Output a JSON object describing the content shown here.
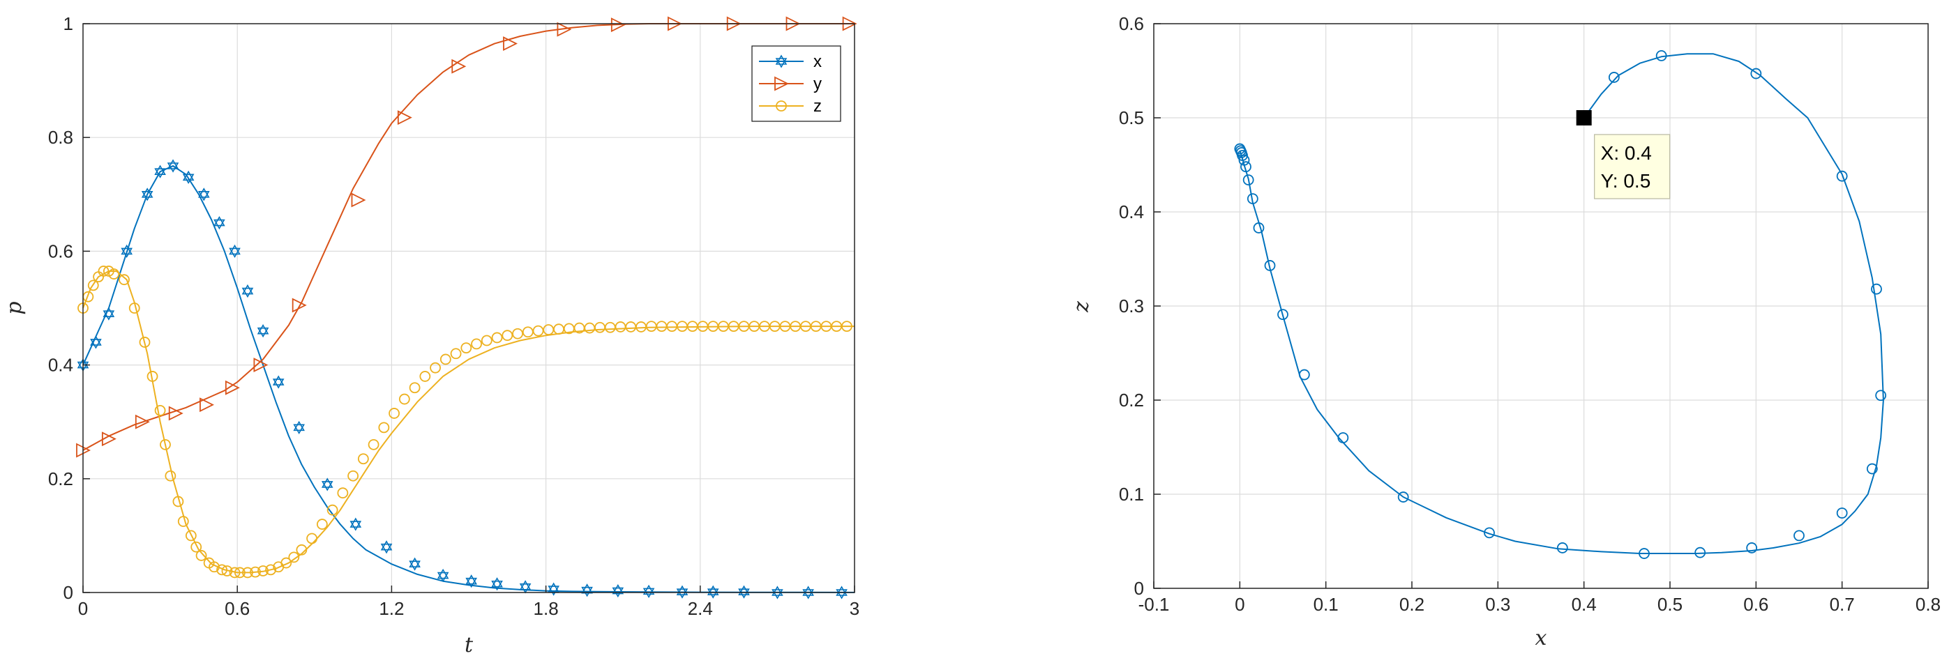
{
  "chart_data": [
    {
      "type": "line",
      "xlabel": "t",
      "ylabel": "p",
      "xlim": [
        0,
        3
      ],
      "ylim": [
        0,
        1
      ],
      "xticks": [
        "0",
        "0.6",
        "1.2",
        "1.8",
        "2.4",
        "3"
      ],
      "yticks": [
        "0",
        "0.2",
        "0.4",
        "0.6",
        "0.8",
        "1"
      ],
      "grid": true,
      "legend_position": "top-right",
      "series": [
        {
          "name": "x",
          "color": "#0072BD",
          "marker": "hexagram",
          "x": [
            0,
            0.03,
            0.06,
            0.1,
            0.15,
            0.2,
            0.25,
            0.3,
            0.35,
            0.4,
            0.45,
            0.5,
            0.55,
            0.6,
            0.65,
            0.7,
            0.75,
            0.8,
            0.85,
            0.9,
            0.95,
            1.0,
            1.05,
            1.1,
            1.2,
            1.3,
            1.4,
            1.5,
            1.6,
            1.7,
            1.8,
            1.9,
            2.0,
            2.2,
            2.4,
            2.6,
            2.8,
            3.0
          ],
          "values": [
            0.4,
            0.43,
            0.46,
            0.5,
            0.57,
            0.64,
            0.7,
            0.74,
            0.75,
            0.735,
            0.7,
            0.655,
            0.6,
            0.535,
            0.465,
            0.4,
            0.335,
            0.275,
            0.225,
            0.185,
            0.15,
            0.12,
            0.095,
            0.075,
            0.05,
            0.032,
            0.02,
            0.013,
            0.008,
            0.005,
            0.003,
            0.002,
            0.0015,
            0.001,
            0.0005,
            0.0003,
            0.0002,
            0.0001
          ],
          "marker_x": [
            0,
            0.05,
            0.1,
            0.17,
            0.25,
            0.3,
            0.35,
            0.41,
            0.47,
            0.53,
            0.59,
            0.64,
            0.7,
            0.76,
            0.84,
            0.95,
            1.06,
            1.18,
            1.29,
            1.4,
            1.51,
            1.61,
            1.72,
            1.83,
            1.96,
            2.08,
            2.2,
            2.33,
            2.45,
            2.57,
            2.7,
            2.82,
            2.95
          ],
          "marker_values": [
            0.4,
            0.44,
            0.49,
            0.6,
            0.7,
            0.74,
            0.75,
            0.73,
            0.7,
            0.65,
            0.6,
            0.53,
            0.46,
            0.37,
            0.29,
            0.19,
            0.12,
            0.08,
            0.05,
            0.03,
            0.02,
            0.015,
            0.01,
            0.006,
            0.004,
            0.003,
            0.002,
            0.001,
            0.001,
            0.001,
            0,
            0,
            0
          ]
        },
        {
          "name": "y",
          "color": "#D95319",
          "marker": "triangle-right",
          "x": [
            0,
            0.1,
            0.2,
            0.3,
            0.4,
            0.5,
            0.55,
            0.6,
            0.65,
            0.7,
            0.75,
            0.8,
            0.85,
            0.9,
            0.95,
            1.0,
            1.05,
            1.1,
            1.15,
            1.2,
            1.3,
            1.4,
            1.5,
            1.6,
            1.7,
            1.8,
            1.9,
            2.0,
            2.1,
            2.2,
            2.4,
            2.6,
            2.8,
            3.0
          ],
          "values": [
            0.25,
            0.275,
            0.295,
            0.31,
            0.325,
            0.345,
            0.355,
            0.37,
            0.39,
            0.41,
            0.44,
            0.47,
            0.51,
            0.56,
            0.61,
            0.66,
            0.71,
            0.75,
            0.79,
            0.825,
            0.875,
            0.915,
            0.945,
            0.965,
            0.978,
            0.987,
            0.993,
            0.997,
            0.999,
            1.0,
            1.0,
            1.0,
            1.0,
            1.0
          ],
          "marker_x": [
            0,
            0.1,
            0.23,
            0.36,
            0.48,
            0.58,
            0.69,
            0.84,
            1.07,
            1.25,
            1.46,
            1.66,
            1.87,
            2.08,
            2.3,
            2.53,
            2.76,
            2.98
          ],
          "marker_values": [
            0.25,
            0.27,
            0.3,
            0.315,
            0.33,
            0.36,
            0.4,
            0.505,
            0.69,
            0.835,
            0.925,
            0.965,
            0.99,
            0.998,
            1.0,
            1.0,
            1.0,
            1.0
          ]
        },
        {
          "name": "z",
          "color": "#EDB120",
          "marker": "circle",
          "x": [
            0,
            0.03,
            0.06,
            0.1,
            0.13,
            0.17,
            0.2,
            0.25,
            0.3,
            0.35,
            0.4,
            0.45,
            0.5,
            0.55,
            0.6,
            0.65,
            0.7,
            0.75,
            0.8,
            0.85,
            0.9,
            0.95,
            1.0,
            1.05,
            1.1,
            1.15,
            1.2,
            1.3,
            1.4,
            1.5,
            1.6,
            1.7,
            1.8,
            1.9,
            2.0,
            2.1,
            2.2,
            2.4,
            2.6,
            2.8,
            3.0
          ],
          "values": [
            0.5,
            0.535,
            0.555,
            0.565,
            0.565,
            0.55,
            0.51,
            0.42,
            0.3,
            0.2,
            0.12,
            0.075,
            0.05,
            0.04,
            0.035,
            0.035,
            0.037,
            0.042,
            0.052,
            0.068,
            0.09,
            0.115,
            0.145,
            0.18,
            0.215,
            0.25,
            0.28,
            0.335,
            0.38,
            0.41,
            0.43,
            0.443,
            0.452,
            0.458,
            0.462,
            0.464,
            0.466,
            0.467,
            0.468,
            0.468,
            0.468
          ],
          "marker_x": [
            0,
            0.02,
            0.04,
            0.06,
            0.08,
            0.1,
            0.12,
            0.16,
            0.2,
            0.24,
            0.27,
            0.3,
            0.32,
            0.34,
            0.37,
            0.39,
            0.42,
            0.44,
            0.46,
            0.49,
            0.51,
            0.54,
            0.56,
            0.59,
            0.61,
            0.64,
            0.67,
            0.7,
            0.73,
            0.76,
            0.79,
            0.82,
            0.85,
            0.89,
            0.93,
            0.97,
            1.01,
            1.05,
            1.09,
            1.13,
            1.17,
            1.21,
            1.25,
            1.29,
            1.33,
            1.37,
            1.41,
            1.45,
            1.49,
            1.53,
            1.57,
            1.61,
            1.65,
            1.69,
            1.73,
            1.77,
            1.81,
            1.85,
            1.89,
            1.93,
            1.97,
            2.01,
            2.05,
            2.09,
            2.13,
            2.17,
            2.21,
            2.25,
            2.29,
            2.33,
            2.37,
            2.41,
            2.45,
            2.49,
            2.53,
            2.57,
            2.61,
            2.65,
            2.69,
            2.73,
            2.77,
            2.81,
            2.85,
            2.89,
            2.93,
            2.97
          ],
          "marker_values": [
            0.5,
            0.52,
            0.54,
            0.555,
            0.565,
            0.565,
            0.56,
            0.55,
            0.5,
            0.44,
            0.38,
            0.32,
            0.26,
            0.205,
            0.16,
            0.125,
            0.1,
            0.08,
            0.065,
            0.052,
            0.045,
            0.04,
            0.038,
            0.035,
            0.035,
            0.035,
            0.036,
            0.038,
            0.04,
            0.045,
            0.052,
            0.062,
            0.075,
            0.095,
            0.12,
            0.145,
            0.175,
            0.205,
            0.235,
            0.26,
            0.29,
            0.315,
            0.34,
            0.36,
            0.38,
            0.395,
            0.41,
            0.42,
            0.43,
            0.437,
            0.443,
            0.448,
            0.452,
            0.455,
            0.458,
            0.46,
            0.462,
            0.463,
            0.464,
            0.465,
            0.465,
            0.466,
            0.466,
            0.467,
            0.467,
            0.467,
            0.468,
            0.468,
            0.468,
            0.468,
            0.468,
            0.468,
            0.468,
            0.468,
            0.468,
            0.468,
            0.468,
            0.468,
            0.468,
            0.468,
            0.468,
            0.468,
            0.468,
            0.468,
            0.468,
            0.468
          ]
        }
      ]
    },
    {
      "type": "line",
      "xlabel": "x",
      "ylabel": "z",
      "xlim": [
        -0.1,
        0.8
      ],
      "ylim": [
        0,
        0.6
      ],
      "xticks": [
        "-0.1",
        "0",
        "0.1",
        "0.2",
        "0.3",
        "0.4",
        "0.5",
        "0.6",
        "0.7",
        "0.8"
      ],
      "yticks": [
        "0",
        "0.1",
        "0.2",
        "0.3",
        "0.4",
        "0.5",
        "0.6"
      ],
      "grid": true,
      "series": [
        {
          "color": "#0072BD",
          "marker": "circle",
          "x": [
            0.4,
            0.42,
            0.44,
            0.465,
            0.49,
            0.52,
            0.55,
            0.58,
            0.605,
            0.635,
            0.66,
            0.68,
            0.7,
            0.72,
            0.735,
            0.745,
            0.748,
            0.745,
            0.74,
            0.73,
            0.715,
            0.7,
            0.675,
            0.65,
            0.62,
            0.595,
            0.56,
            0.53,
            0.5,
            0.465,
            0.42,
            0.37,
            0.32,
            0.29,
            0.24,
            0.19,
            0.15,
            0.115,
            0.09,
            0.07,
            0.05,
            0.035,
            0.025,
            0.015,
            0.01,
            0.005,
            0.002,
            0
          ],
          "values": [
            0.5,
            0.525,
            0.545,
            0.558,
            0.565,
            0.568,
            0.568,
            0.56,
            0.545,
            0.52,
            0.5,
            0.47,
            0.44,
            0.39,
            0.33,
            0.27,
            0.2,
            0.16,
            0.13,
            0.1,
            0.082,
            0.068,
            0.055,
            0.048,
            0.043,
            0.04,
            0.038,
            0.037,
            0.037,
            0.037,
            0.039,
            0.042,
            0.05,
            0.058,
            0.075,
            0.097,
            0.125,
            0.16,
            0.19,
            0.225,
            0.29,
            0.34,
            0.38,
            0.41,
            0.435,
            0.45,
            0.46,
            0.465
          ],
          "marker_x": [
            0.4,
            0.435,
            0.49,
            0.6,
            0.7,
            0.74,
            0.745,
            0.735,
            0.7,
            0.65,
            0.595,
            0.535,
            0.47,
            0.375,
            0.29,
            0.19,
            0.12,
            0.075,
            0.05,
            0.035,
            0.022,
            0.015,
            0.01,
            0.007,
            0.005,
            0.003,
            0.002,
            0.001,
            0
          ],
          "marker_values": [
            0.5,
            0.543,
            0.566,
            0.547,
            0.438,
            0.318,
            0.205,
            0.127,
            0.08,
            0.056,
            0.043,
            0.038,
            0.037,
            0.043,
            0.059,
            0.097,
            0.16,
            0.227,
            0.291,
            0.343,
            0.383,
            0.414,
            0.434,
            0.448,
            0.455,
            0.46,
            0.463,
            0.465,
            0.467
          ]
        }
      ],
      "datatip": {
        "x_text": "X: 0.4",
        "y_text": "Y: 0.5",
        "x": 0.4,
        "y": 0.5
      }
    }
  ]
}
